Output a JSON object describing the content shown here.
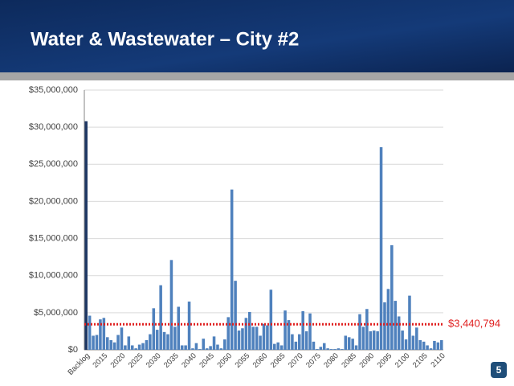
{
  "chart_data": {
    "type": "bar",
    "title": "Water & Wastewater – City #2",
    "page_number": "5",
    "categories": [
      "Backlog",
      null,
      null,
      null,
      null,
      "2015",
      null,
      null,
      null,
      null,
      "2020",
      null,
      null,
      null,
      null,
      "2025",
      null,
      null,
      null,
      null,
      "2030",
      null,
      null,
      null,
      null,
      "2035",
      null,
      null,
      null,
      null,
      "2040",
      null,
      null,
      null,
      null,
      "2045",
      null,
      null,
      null,
      null,
      "2050",
      null,
      null,
      null,
      null,
      "2055",
      null,
      null,
      null,
      null,
      "2060",
      null,
      null,
      null,
      null,
      "2065",
      null,
      null,
      null,
      null,
      "2070",
      null,
      null,
      null,
      null,
      "2075",
      null,
      null,
      null,
      null,
      "2080",
      null,
      null,
      null,
      null,
      "2085",
      null,
      null,
      null,
      null,
      "2090",
      null,
      null,
      null,
      null,
      "2095",
      null,
      null,
      null,
      null,
      "2100",
      null,
      null,
      null,
      null,
      "2105",
      null,
      null,
      null,
      null,
      "2110"
    ],
    "values": [
      30800000,
      4600000,
      1900000,
      2000000,
      4100000,
      4300000,
      1700000,
      1300000,
      1000000,
      2000000,
      3000000,
      600000,
      1800000,
      600000,
      200000,
      700000,
      900000,
      1300000,
      2100000,
      5600000,
      2700000,
      8700000,
      2400000,
      2100000,
      12100000,
      3100000,
      5800000,
      600000,
      600000,
      6500000,
      200000,
      900000,
      100000,
      1500000,
      200000,
      500000,
      1800000,
      700000,
      200000,
      1400000,
      4400000,
      21600000,
      9300000,
      2600000,
      2900000,
      4300000,
      5100000,
      3100000,
      3100000,
      1900000,
      3500000,
      3300000,
      8100000,
      800000,
      1000000,
      600000,
      5300000,
      4000000,
      2100000,
      1100000,
      2100000,
      5200000,
      2500000,
      4900000,
      1100000,
      100000,
      400000,
      900000,
      200000,
      100000,
      100000,
      200000,
      100000,
      1900000,
      1700000,
      1500000,
      600000,
      4800000,
      3100000,
      5500000,
      2500000,
      2600000,
      2500000,
      27300000,
      6400000,
      8200000,
      14100000,
      6600000,
      4500000,
      2600000,
      1400000,
      7300000,
      1900000,
      3000000,
      1300000,
      1100000,
      600000,
      200000,
      1200000,
      1000000,
      1300000
    ],
    "color": "#4f81bd",
    "first_color": "#1f3864",
    "average": {
      "value": 3440794,
      "label": "$3,440,794",
      "color": "#e02020"
    },
    "ylim": [
      0,
      35000000
    ],
    "yticks": [
      {
        "value": 0,
        "label": "$0"
      },
      {
        "value": 5000000,
        "label": "$5,000,000"
      },
      {
        "value": 10000000,
        "label": "$10,000,000"
      },
      {
        "value": 15000000,
        "label": "$15,000,000"
      },
      {
        "value": 20000000,
        "label": "$20,000,000"
      },
      {
        "value": 25000000,
        "label": "$25,000,000"
      },
      {
        "value": 30000000,
        "label": "$30,000,000"
      },
      {
        "value": 35000000,
        "label": "$35,000,000"
      }
    ],
    "grid": true
  }
}
